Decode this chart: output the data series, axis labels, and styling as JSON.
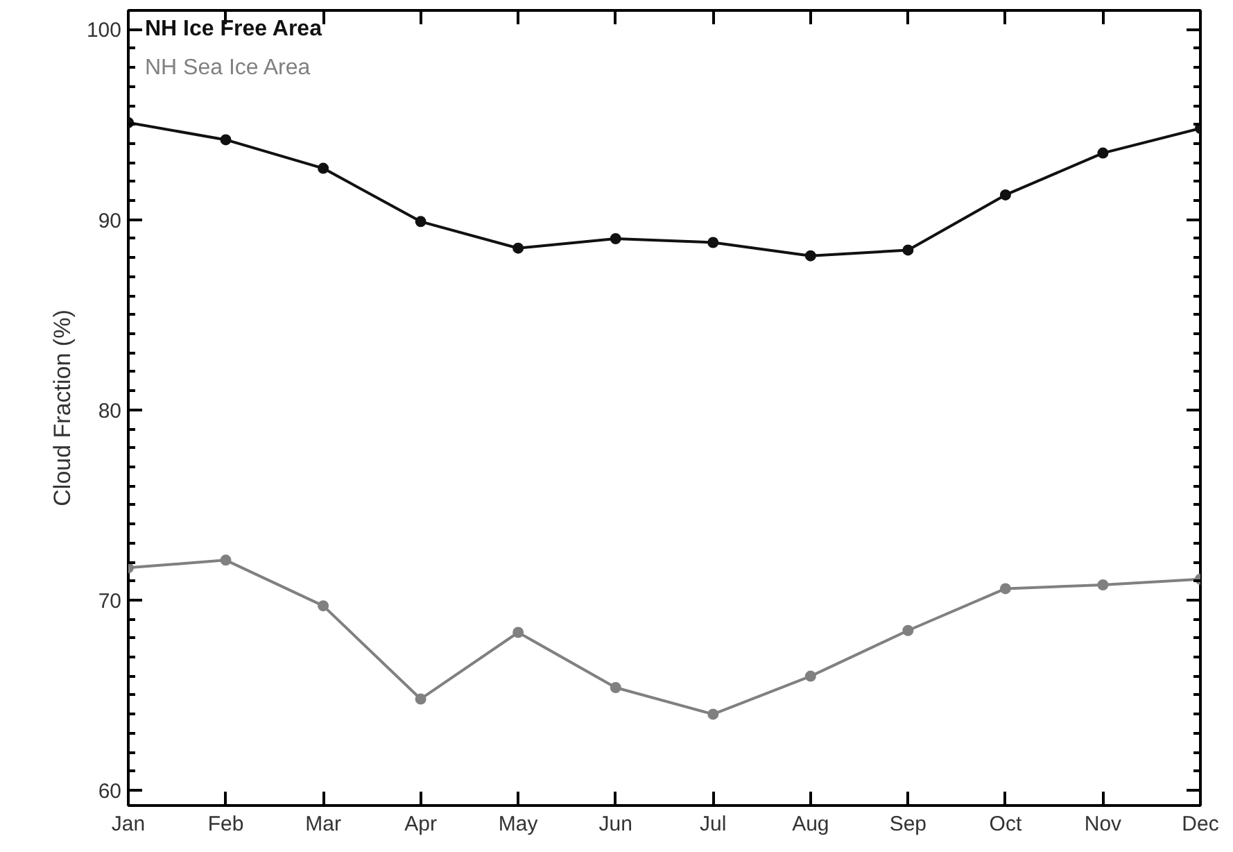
{
  "chart_data": {
    "type": "line",
    "ylabel": "Cloud Fraction (%)",
    "categories": [
      "Jan",
      "Feb",
      "Mar",
      "Apr",
      "May",
      "Jun",
      "Jul",
      "Aug",
      "Sep",
      "Oct",
      "Nov",
      "Dec"
    ],
    "series": [
      {
        "name": "NH Ice Free Area",
        "color": "#111111",
        "values": [
          95.1,
          94.2,
          92.7,
          89.9,
          88.5,
          89.0,
          88.8,
          88.1,
          88.4,
          91.3,
          93.5,
          94.8
        ]
      },
      {
        "name": "NH Sea Ice Area",
        "color": "#808080",
        "values": [
          71.7,
          72.1,
          69.7,
          64.8,
          68.3,
          65.4,
          64.0,
          66.0,
          68.4,
          70.6,
          70.8,
          71.1
        ]
      }
    ],
    "ylim": [
      59.2,
      101
    ],
    "yticks": [
      60,
      70,
      80,
      90,
      100
    ],
    "grid": false,
    "legend": "top left",
    "marker": "circle",
    "line_style": "solid"
  }
}
